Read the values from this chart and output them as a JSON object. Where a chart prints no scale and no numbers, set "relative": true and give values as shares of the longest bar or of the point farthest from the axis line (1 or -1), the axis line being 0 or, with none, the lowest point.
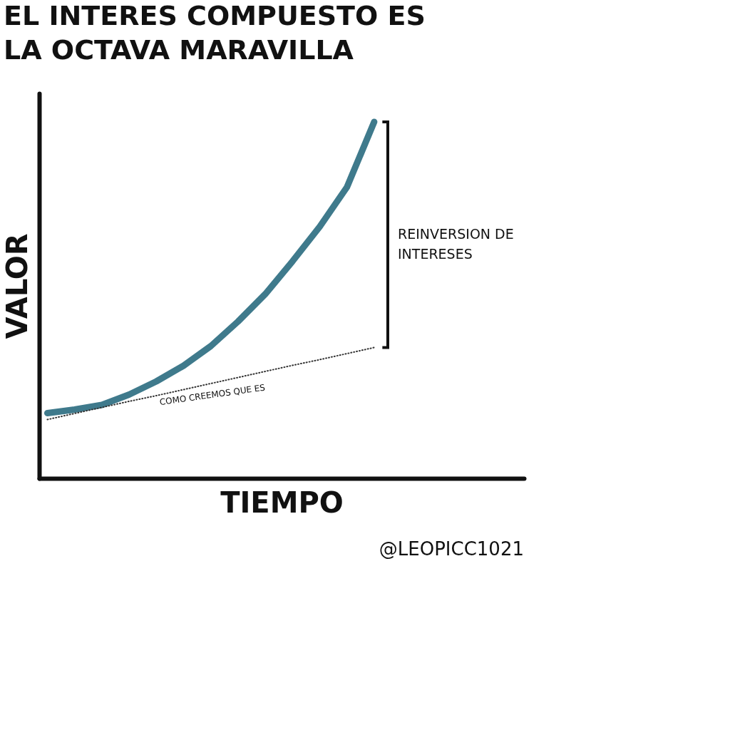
{
  "chart_data": {
    "type": "line",
    "title": "EL INTERES COMPUESTO ES LA OCTAVA MARAVILLA",
    "xlabel": "TIEMPO",
    "ylabel": "VALOR",
    "relative": true,
    "tick_labels": false,
    "grid": false,
    "categories": [
      null,
      null,
      null,
      null,
      null,
      null,
      null,
      null,
      null,
      null,
      null,
      null,
      null
    ],
    "series": [
      {
        "color": "#3f7a8c",
        "line_style": "solid",
        "values": [
          0.183,
          0.193,
          0.206,
          0.235,
          0.272,
          0.316,
          0.371,
          0.44,
          0.517,
          0.609,
          0.706,
          0.817,
          1
        ]
      },
      {
        "name": "COMO CREEMOS QUE ES",
        "color": "#333333",
        "line_style": "dotted",
        "values": [
          0.165,
          0.182,
          0.199,
          0.216,
          0.232,
          0.249,
          0.266,
          0.283,
          0.3,
          0.317,
          0.333,
          0.35,
          0.367
        ]
      }
    ],
    "annotations": [
      "REINVERSION DE INTERESES",
      "@LEOPICC1021"
    ]
  }
}
